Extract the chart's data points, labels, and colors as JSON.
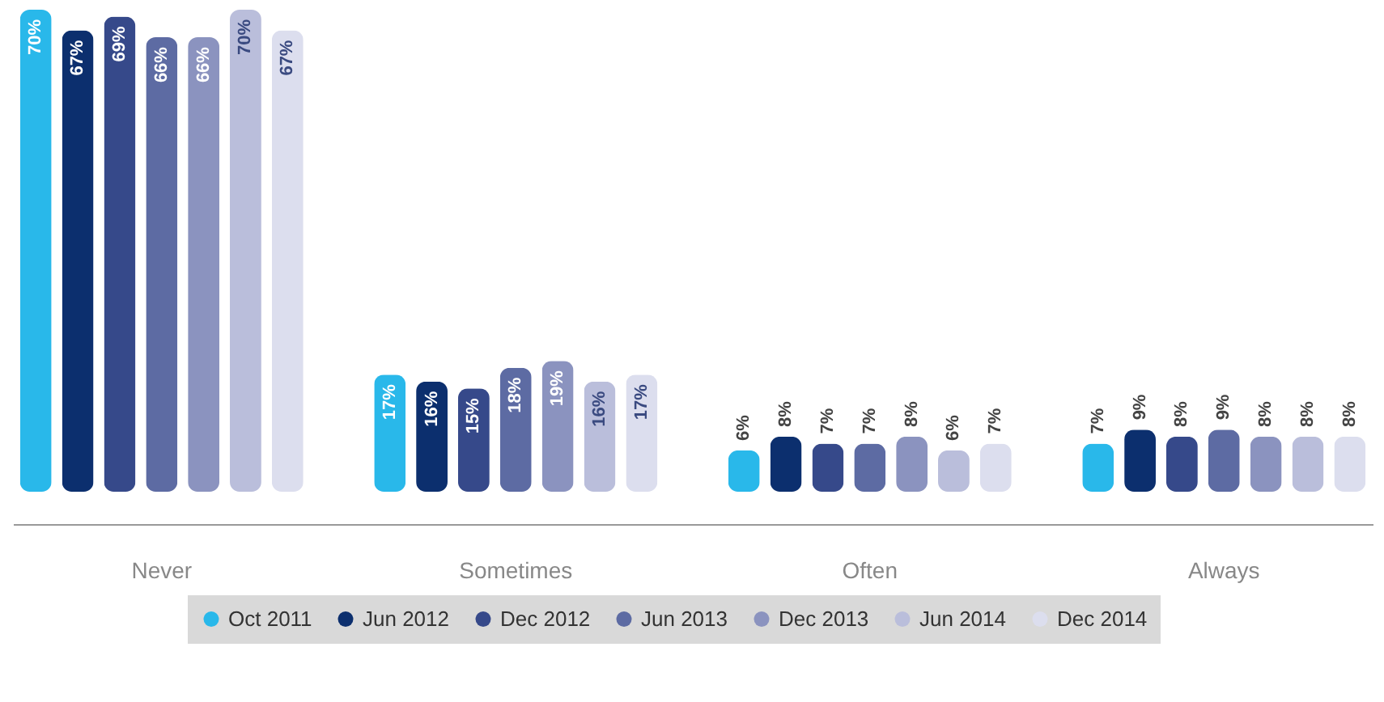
{
  "chart_data": {
    "type": "bar",
    "categories": [
      "Never",
      "Sometimes",
      "Often",
      "Always"
    ],
    "legend": "bottom",
    "grid": false,
    "series": [
      {
        "name": "Oct 2011",
        "color": "#29b8ea",
        "values": [
          70,
          17,
          6,
          7
        ],
        "value_labels": [
          "70%",
          "17%",
          "6%",
          "7%"
        ]
      },
      {
        "name": "Jun 2012",
        "color": "#0c2f6e",
        "values": [
          67,
          16,
          8,
          9
        ],
        "value_labels": [
          "67%",
          "16%",
          "8%",
          "9%"
        ]
      },
      {
        "name": "Dec 2012",
        "color": "#36498a",
        "values": [
          69,
          15,
          7,
          8
        ],
        "value_labels": [
          "69%",
          "15%",
          "7%",
          "8%"
        ]
      },
      {
        "name": "Jun 2013",
        "color": "#5d6ba3",
        "values": [
          66,
          18,
          7,
          9
        ],
        "value_labels": [
          "66%",
          "18%",
          "7%",
          "9%"
        ]
      },
      {
        "name": "Dec 2013",
        "color": "#8b93bf",
        "values": [
          66,
          19,
          8,
          8
        ],
        "value_labels": [
          "66%",
          "19%",
          "8%",
          "8%"
        ]
      },
      {
        "name": "Jun 2014",
        "color": "#babedb",
        "values": [
          70,
          16,
          6,
          8
        ],
        "value_labels": [
          "70%",
          "16%",
          "6%",
          "8%"
        ]
      },
      {
        "name": "Dec 2014",
        "color": "#dcdeee",
        "values": [
          67,
          17,
          7,
          8
        ],
        "value_labels": [
          "67%",
          "17%",
          "7%",
          "8%"
        ]
      }
    ]
  }
}
